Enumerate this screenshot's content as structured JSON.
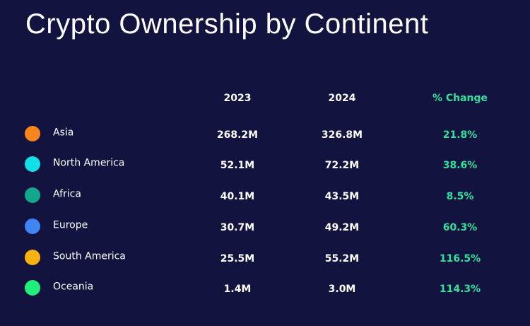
{
  "header": {
    "title": "Crypto Ownership by Continent"
  },
  "table": {
    "columns": [
      "2023",
      "2024",
      "% Change"
    ],
    "rows": [
      {
        "name": "Asia",
        "color": "#f7851b",
        "cells": [
          "268.2M",
          "326.8M",
          "21.8%"
        ]
      },
      {
        "name": "North America",
        "color": "#13e0e6",
        "cells": [
          "52.1M",
          "72.2M",
          "38.6%"
        ]
      },
      {
        "name": "Africa",
        "color": "#12a88e",
        "cells": [
          "40.1M",
          "43.5M",
          "8.5%"
        ]
      },
      {
        "name": "Europe",
        "color": "#3f86f2",
        "cells": [
          "30.7M",
          "49.2M",
          "60.3%"
        ]
      },
      {
        "name": "South America",
        "color": "#f7b111",
        "cells": [
          "25.5M",
          "55.2M",
          "116.5%"
        ]
      },
      {
        "name": "Oceania",
        "color": "#1ef07a",
        "cells": [
          "1.4M",
          "3.0M",
          "114.3%"
        ]
      }
    ]
  }
}
